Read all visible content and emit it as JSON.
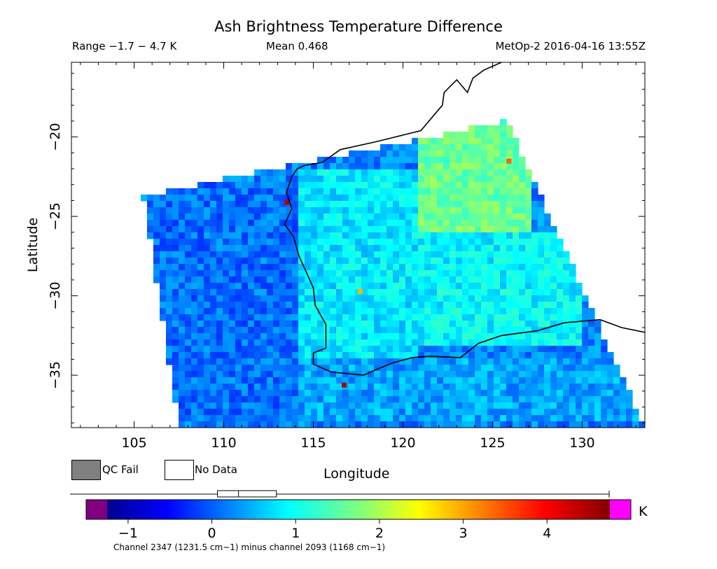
{
  "header": {
    "title": "Ash Brightness Temperature Difference",
    "range_text": "Range −1.7 − 4.7 K",
    "mean_text": "Mean 0.468",
    "source_text": "MetOp-2 2016-04-16 13:55Z"
  },
  "legend": {
    "qc_fail": "QC Fail",
    "no_data": "No Data",
    "qc_fail_color": "#808080",
    "no_data_color": "#ffffff"
  },
  "colorbar": {
    "unit": "K",
    "caption": "Channel 2347 (1231.5 cm−1) minus channel 2093 (1168 cm−1)",
    "ticks": [
      -1,
      0,
      1,
      2,
      3,
      4
    ],
    "tick_labels": [
      "−1",
      "0",
      "1",
      "2",
      "3",
      "4"
    ],
    "min": -1.25,
    "max": 4.75,
    "under_color": "#800080",
    "over_color": "#ff00ff",
    "boxplot": {
      "min": -1.7,
      "q1": 0.05,
      "median": 0.3,
      "q3": 0.75,
      "max": 4.7
    }
  },
  "chart_data": {
    "type": "heatmap",
    "title": "Ash Brightness Temperature Difference",
    "xlabel": "Longitude",
    "ylabel": "Latitude",
    "xlim": [
      101.5,
      133.5
    ],
    "ylim": [
      -38.3,
      -15.3
    ],
    "xticks": [
      105,
      110,
      115,
      120,
      125,
      130
    ],
    "yticks": [
      -20,
      -25,
      -30,
      -35
    ],
    "x_tick_labels": [
      "105",
      "110",
      "115",
      "120",
      "125",
      "130"
    ],
    "y_tick_labels": [
      "−20",
      "−25",
      "−30",
      "−35"
    ],
    "value_range": [
      -1.7,
      4.7
    ],
    "mean": 0.468,
    "units": "K",
    "swath_corners": [
      [
        105.5,
        -23.7
      ],
      [
        125.8,
        -19.0
      ],
      [
        133.5,
        -38.3
      ],
      [
        107.5,
        -38.3
      ]
    ],
    "regions": [
      {
        "lon": [
          106,
          114
        ],
        "lat": [
          -38,
          -23
        ],
        "value": 0.1
      },
      {
        "lon": [
          114,
          121
        ],
        "lat": [
          -34,
          -22
        ],
        "value": 0.8
      },
      {
        "lon": [
          121,
          127
        ],
        "lat": [
          -26,
          -19
        ],
        "value": 1.6
      },
      {
        "lon": [
          121,
          130
        ],
        "lat": [
          -33,
          -26
        ],
        "value": 0.9
      },
      {
        "lon": [
          114,
          133
        ],
        "lat": [
          -38,
          -34
        ],
        "value": 0.4
      }
    ],
    "hot_spots": [
      {
        "lon": 113.5,
        "lat": -24.1,
        "value": 4.4
      },
      {
        "lon": 117.6,
        "lat": -29.7,
        "value": 2.9
      },
      {
        "lon": 125.9,
        "lat": -21.5,
        "value": 3.4
      },
      {
        "lon": 116.7,
        "lat": -35.6,
        "value": 4.5
      }
    ]
  }
}
